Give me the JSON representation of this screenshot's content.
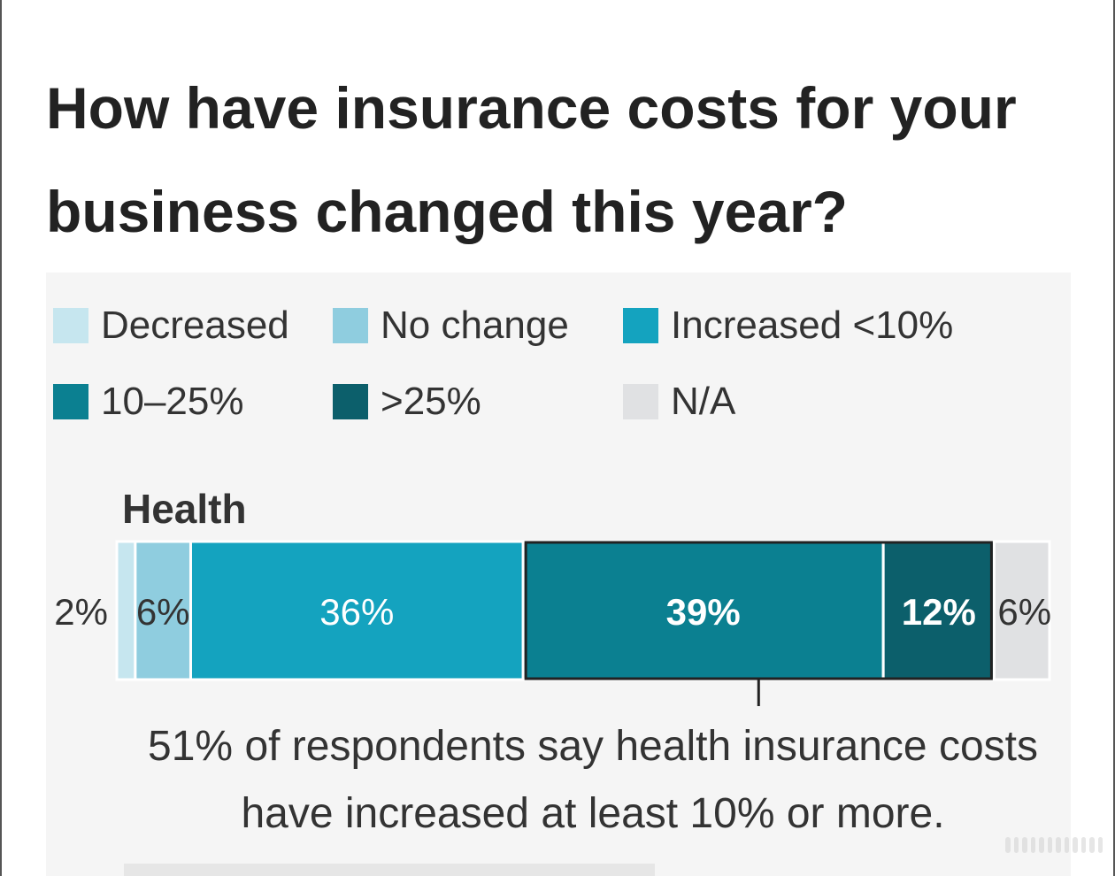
{
  "title": "How have insurance costs for your business changed this year?",
  "chart_data": {
    "type": "bar",
    "orientation": "horizontal-stacked",
    "categories": [
      "Health"
    ],
    "series": [
      {
        "name": "Decreased",
        "values": [
          2
        ],
        "label": "2%",
        "color": "#c6e6ef"
      },
      {
        "name": "No change",
        "values": [
          6
        ],
        "label": "6%",
        "color": "#8fcddf"
      },
      {
        "name": "Increased <10%",
        "values": [
          36
        ],
        "label": "36%",
        "color": "#14a3bf"
      },
      {
        "name": "10–25%",
        "values": [
          39
        ],
        "label": "39%",
        "color": "#0b8091"
      },
      {
        "name": ">25%",
        "values": [
          12
        ],
        "label": "12%",
        "color": "#0c5f6b"
      },
      {
        "name": "N/A",
        "values": [
          6
        ],
        "label": "6%",
        "color": "#e0e1e3"
      }
    ],
    "highlight": {
      "from_series": 3,
      "to_series": 4
    },
    "annotation": "51% of respondents say health insurance costs have increased at least 10% or more.",
    "legend_placement": "top",
    "xlim": [
      0,
      101
    ]
  }
}
